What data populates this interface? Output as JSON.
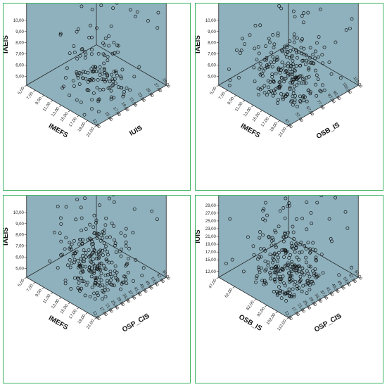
{
  "colors": {
    "panel_border": "#3fb464",
    "plot_fill": "#8fb1bd",
    "plot_line": "#222222",
    "marker_stroke": "#111111"
  },
  "chart_data": [
    {
      "type": "scatter3d",
      "vertical_axis": {
        "label": "IAEIS",
        "ticks": [
          "5,00",
          "6,00",
          "7,00",
          "8,00",
          "9,00",
          "10,00"
        ],
        "range": [
          4.2,
          11.5
        ]
      },
      "left_axis": {
        "label": "IMEFS",
        "ticks": [
          "5,00",
          "7,00",
          "9,00",
          "11,00",
          "13,00",
          "15,00",
          "17,00",
          "19,00",
          "21,00"
        ],
        "range": [
          5,
          21
        ]
      },
      "right_axis": {
        "label": "IUIS",
        "ticks": [
          "12,00",
          "15,00",
          "17,00",
          "19,00",
          "21,00",
          "23,00",
          "25,00",
          "27,00",
          "29,00"
        ],
        "range": [
          12,
          29
        ]
      },
      "seed": 11,
      "n_points": 150
    },
    {
      "type": "scatter3d",
      "vertical_axis": {
        "label": "IAEIS",
        "ticks": [
          "5,00",
          "6,00",
          "7,00",
          "8,00",
          "9,00",
          "10,00"
        ],
        "range": [
          4.2,
          11.5
        ]
      },
      "left_axis": {
        "label": "IMEFS",
        "ticks": [
          "5,00",
          "7,00",
          "9,00",
          "11,00",
          "13,00",
          "15,00",
          "17,00",
          "19,00",
          "21,00"
        ],
        "range": [
          5,
          21
        ]
      },
      "right_axis": {
        "label": "OSB_IS",
        "ticks": [
          "47,00",
          "57,00",
          "67,00",
          "77,00",
          "87,00",
          "92,00",
          "102,00",
          "112,00"
        ],
        "range": [
          47,
          112
        ]
      },
      "seed": 23,
      "n_points": 260
    },
    {
      "type": "scatter3d",
      "vertical_axis": {
        "label": "IAEIS",
        "ticks": [
          "5,00",
          "6,00",
          "7,00",
          "8,00",
          "9,00",
          "10,00"
        ],
        "range": [
          4.2,
          11.5
        ]
      },
      "left_axis": {
        "label": "IMEFS",
        "ticks": [
          "5,00",
          "7,00",
          "9,00",
          "11,00",
          "13,00",
          "15,00",
          "17,00",
          "19,00",
          "21,00"
        ],
        "range": [
          5,
          21
        ]
      },
      "right_axis": {
        "label": "OSP_CIS",
        "ticks": [
          "12,00",
          "17,00",
          "21,00",
          "25,00",
          "29,00",
          "33,00",
          "37,00",
          "41,00",
          "45,00",
          "49,00",
          "53,00",
          "57,00",
          "61,00"
        ],
        "range": [
          12,
          61
        ]
      },
      "seed": 37,
      "n_points": 260
    },
    {
      "type": "scatter3d",
      "vertical_axis": {
        "label": "IUIS",
        "ticks": [
          "12,00",
          "15,00",
          "17,00",
          "19,00",
          "21,00",
          "23,00",
          "25,00",
          "27,00",
          "29,00"
        ],
        "range": [
          10.5,
          31.5
        ]
      },
      "left_axis": {
        "label": "OSB_IS",
        "ticks": [
          "47,00",
          "62,00",
          "82,00",
          "92,00",
          "102,00",
          "112,00"
        ],
        "range": [
          47,
          112
        ]
      },
      "right_axis": {
        "label": "OSP_CIS",
        "ticks": [
          "12,00",
          "17,00",
          "21,00",
          "25,00",
          "29,00",
          "33,00",
          "37,00",
          "41,00",
          "45,00",
          "49,00",
          "53,00",
          "57,00",
          "61,00"
        ],
        "range": [
          12,
          61
        ]
      },
      "seed": 53,
      "n_points": 270
    }
  ]
}
